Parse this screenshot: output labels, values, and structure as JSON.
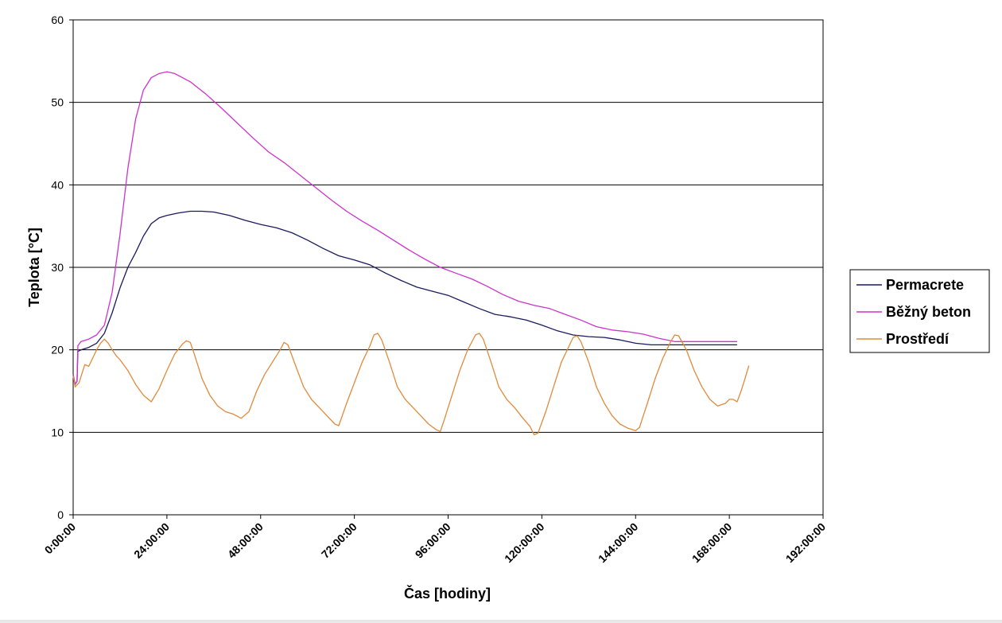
{
  "chart_data": {
    "type": "line",
    "title": "",
    "xlabel": "Čas [hodiny]",
    "ylabel": "Teplota [°C]",
    "xlim": [
      0,
      192
    ],
    "ylim": [
      0,
      60
    ],
    "yticks": [
      0,
      10,
      20,
      30,
      40,
      50,
      60
    ],
    "xticks": [
      0,
      24,
      48,
      72,
      96,
      120,
      144,
      168,
      192
    ],
    "xtick_labels": [
      "0:00:00",
      "24:00:00",
      "48:00:00",
      "72:00:00",
      "96:00:00",
      "120:00:00",
      "144:00:00",
      "168:00:00",
      "192:00:00"
    ],
    "grid": "horizontal",
    "legend_position": "right",
    "series": [
      {
        "name": "Permacrete",
        "color": "#1a1a5e",
        "points": [
          [
            0,
            17
          ],
          [
            0.5,
            15.8
          ],
          [
            1,
            16.2
          ],
          [
            1.2,
            19.8
          ],
          [
            2,
            20
          ],
          [
            4,
            20.3
          ],
          [
            6,
            20.8
          ],
          [
            8,
            22
          ],
          [
            10,
            24.5
          ],
          [
            12,
            27.5
          ],
          [
            14,
            30
          ],
          [
            16,
            31.8
          ],
          [
            18,
            33.8
          ],
          [
            20,
            35.3
          ],
          [
            22,
            36
          ],
          [
            24,
            36.3
          ],
          [
            27,
            36.6
          ],
          [
            30,
            36.8
          ],
          [
            33,
            36.8
          ],
          [
            36,
            36.7
          ],
          [
            40,
            36.3
          ],
          [
            44,
            35.7
          ],
          [
            48,
            35.2
          ],
          [
            52,
            34.8
          ],
          [
            56,
            34.2
          ],
          [
            60,
            33.3
          ],
          [
            64,
            32.3
          ],
          [
            68,
            31.4
          ],
          [
            72,
            30.9
          ],
          [
            76,
            30.3
          ],
          [
            80,
            29.3
          ],
          [
            84,
            28.4
          ],
          [
            88,
            27.6
          ],
          [
            92,
            27.1
          ],
          [
            96,
            26.6
          ],
          [
            100,
            25.8
          ],
          [
            104,
            25
          ],
          [
            108,
            24.3
          ],
          [
            112,
            24
          ],
          [
            116,
            23.6
          ],
          [
            120,
            23
          ],
          [
            124,
            22.3
          ],
          [
            128,
            21.8
          ],
          [
            132,
            21.6
          ],
          [
            136,
            21.5
          ],
          [
            140,
            21.2
          ],
          [
            144,
            20.8
          ],
          [
            148,
            20.6
          ],
          [
            170,
            20.6
          ]
        ]
      },
      {
        "name": "Běžný beton",
        "color": "#cc33cc",
        "points": [
          [
            0,
            17
          ],
          [
            0.5,
            15.8
          ],
          [
            1,
            16.2
          ],
          [
            1.2,
            20.5
          ],
          [
            2,
            21
          ],
          [
            4,
            21.3
          ],
          [
            6,
            21.8
          ],
          [
            8,
            23
          ],
          [
            10,
            27
          ],
          [
            12,
            34
          ],
          [
            14,
            42
          ],
          [
            16,
            48
          ],
          [
            18,
            51.5
          ],
          [
            20,
            53
          ],
          [
            22,
            53.5
          ],
          [
            24,
            53.7
          ],
          [
            26,
            53.5
          ],
          [
            30,
            52.5
          ],
          [
            34,
            51
          ],
          [
            38,
            49.3
          ],
          [
            42,
            47.5
          ],
          [
            46,
            45.7
          ],
          [
            50,
            44
          ],
          [
            54,
            42.7
          ],
          [
            58,
            41.2
          ],
          [
            62,
            39.7
          ],
          [
            66,
            38.2
          ],
          [
            70,
            36.8
          ],
          [
            74,
            35.6
          ],
          [
            78,
            34.5
          ],
          [
            82,
            33.3
          ],
          [
            86,
            32.1
          ],
          [
            90,
            31
          ],
          [
            94,
            30
          ],
          [
            98,
            29.3
          ],
          [
            102,
            28.6
          ],
          [
            106,
            27.7
          ],
          [
            110,
            26.7
          ],
          [
            114,
            25.9
          ],
          [
            118,
            25.4
          ],
          [
            122,
            25
          ],
          [
            126,
            24.3
          ],
          [
            130,
            23.6
          ],
          [
            134,
            22.8
          ],
          [
            138,
            22.4
          ],
          [
            142,
            22.2
          ],
          [
            146,
            21.9
          ],
          [
            150,
            21.4
          ],
          [
            154,
            21
          ],
          [
            170,
            21
          ]
        ]
      },
      {
        "name": "Prostředí",
        "color": "#e08a3c",
        "points": [
          [
            0,
            16.8
          ],
          [
            0.5,
            15.5
          ],
          [
            1.5,
            16
          ],
          [
            2.5,
            17.5
          ],
          [
            3,
            18.2
          ],
          [
            4,
            18
          ],
          [
            5,
            19
          ],
          [
            6,
            20
          ],
          [
            7,
            20.8
          ],
          [
            8,
            21.3
          ],
          [
            9,
            20.8
          ],
          [
            10,
            20
          ],
          [
            11,
            19.3
          ],
          [
            12,
            18.8
          ],
          [
            14,
            17.5
          ],
          [
            16,
            15.8
          ],
          [
            18,
            14.5
          ],
          [
            20,
            13.7
          ],
          [
            22,
            15.3
          ],
          [
            24,
            17.5
          ],
          [
            26,
            19.5
          ],
          [
            28,
            20.7
          ],
          [
            29,
            21.1
          ],
          [
            30,
            20.9
          ],
          [
            31,
            19.5
          ],
          [
            33,
            16.5
          ],
          [
            35,
            14.5
          ],
          [
            37,
            13.2
          ],
          [
            39,
            12.5
          ],
          [
            41,
            12.2
          ],
          [
            43,
            11.7
          ],
          [
            45,
            12.5
          ],
          [
            47,
            15
          ],
          [
            49,
            17
          ],
          [
            51,
            18.5
          ],
          [
            53,
            20
          ],
          [
            54,
            20.9
          ],
          [
            55,
            20.6
          ],
          [
            57,
            18
          ],
          [
            59,
            15.5
          ],
          [
            61,
            14
          ],
          [
            63,
            13
          ],
          [
            65,
            12
          ],
          [
            67,
            11
          ],
          [
            68,
            10.8
          ],
          [
            70,
            13.5
          ],
          [
            72,
            16
          ],
          [
            74,
            18.5
          ],
          [
            76,
            20.5
          ],
          [
            77,
            21.8
          ],
          [
            78,
            22
          ],
          [
            79,
            21.2
          ],
          [
            81,
            18.5
          ],
          [
            83,
            15.5
          ],
          [
            85,
            14
          ],
          [
            87,
            13
          ],
          [
            89,
            12
          ],
          [
            91,
            11
          ],
          [
            93,
            10.3
          ],
          [
            94,
            10.1
          ],
          [
            95,
            11.5
          ],
          [
            97,
            14.5
          ],
          [
            99,
            17.5
          ],
          [
            101,
            20
          ],
          [
            103,
            21.8
          ],
          [
            104,
            22
          ],
          [
            105,
            21.3
          ],
          [
            107,
            18.5
          ],
          [
            109,
            15.5
          ],
          [
            111,
            14
          ],
          [
            113,
            13
          ],
          [
            115,
            11.8
          ],
          [
            117,
            10.7
          ],
          [
            118,
            9.7
          ],
          [
            119,
            9.9
          ],
          [
            121,
            12.5
          ],
          [
            123,
            15.5
          ],
          [
            125,
            18.5
          ],
          [
            127,
            20.5
          ],
          [
            128,
            21.5
          ],
          [
            129,
            21.7
          ],
          [
            130,
            21
          ],
          [
            132,
            18.5
          ],
          [
            134,
            15.5
          ],
          [
            136,
            13.5
          ],
          [
            138,
            12
          ],
          [
            140,
            11
          ],
          [
            142,
            10.5
          ],
          [
            144,
            10.2
          ],
          [
            145,
            10.6
          ],
          [
            147,
            13.5
          ],
          [
            149,
            16.5
          ],
          [
            151,
            19
          ],
          [
            153,
            21
          ],
          [
            154,
            21.8
          ],
          [
            155,
            21.7
          ],
          [
            157,
            20
          ],
          [
            159,
            17.5
          ],
          [
            161,
            15.5
          ],
          [
            163,
            14
          ],
          [
            165,
            13.2
          ],
          [
            167,
            13.5
          ],
          [
            168,
            14
          ],
          [
            169,
            14
          ],
          [
            170,
            13.7
          ],
          [
            171,
            15
          ],
          [
            172,
            16.5
          ],
          [
            173,
            18.1
          ]
        ]
      }
    ]
  }
}
